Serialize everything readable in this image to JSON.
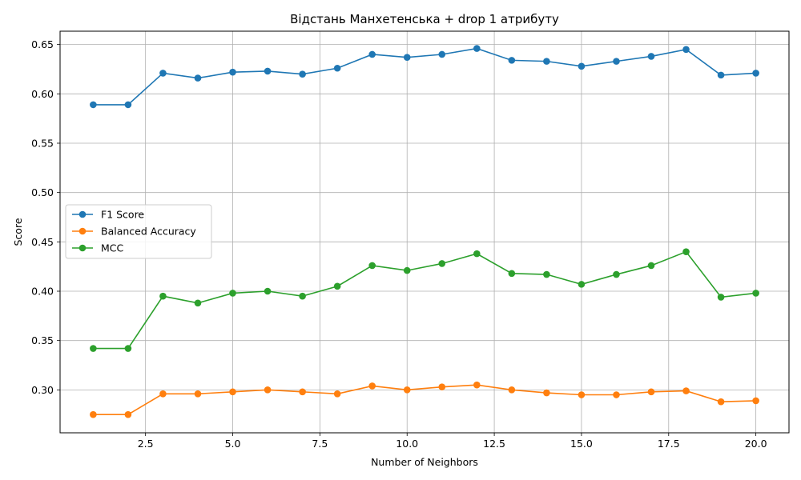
{
  "chart_data": {
    "type": "line",
    "title": "Відстань Манхетенська + drop 1 атрибуту",
    "xlabel": "Number of Neighbors",
    "ylabel": "Score",
    "xlim": [
      0.05,
      20.95
    ],
    "ylim": [
      0.2565,
      0.6635
    ],
    "xticks": [
      2.5,
      5.0,
      7.5,
      10.0,
      12.5,
      15.0,
      17.5,
      20.0
    ],
    "yticks": [
      0.3,
      0.35,
      0.4,
      0.45,
      0.5,
      0.55,
      0.6,
      0.65
    ],
    "grid": true,
    "legend_position": "center-left",
    "x": [
      1,
      2,
      3,
      4,
      5,
      6,
      7,
      8,
      9,
      10,
      11,
      12,
      13,
      14,
      15,
      16,
      17,
      18,
      19,
      20
    ],
    "series": [
      {
        "name": "F1 Score",
        "color": "#1f77b4",
        "values": [
          0.589,
          0.589,
          0.621,
          0.616,
          0.622,
          0.623,
          0.62,
          0.626,
          0.64,
          0.637,
          0.64,
          0.646,
          0.634,
          0.633,
          0.628,
          0.633,
          0.638,
          0.645,
          0.619,
          0.621
        ]
      },
      {
        "name": "Balanced Accuracy",
        "color": "#ff7f0e",
        "values": [
          0.275,
          0.275,
          0.296,
          0.296,
          0.298,
          0.3,
          0.298,
          0.296,
          0.304,
          0.3,
          0.303,
          0.305,
          0.3,
          0.297,
          0.295,
          0.295,
          0.298,
          0.299,
          0.288,
          0.289
        ]
      },
      {
        "name": "MCC",
        "color": "#2ca02c",
        "values": [
          0.342,
          0.342,
          0.395,
          0.388,
          0.398,
          0.4,
          0.395,
          0.405,
          0.426,
          0.421,
          0.428,
          0.438,
          0.418,
          0.417,
          0.407,
          0.417,
          0.426,
          0.44,
          0.394,
          0.398
        ]
      }
    ]
  }
}
